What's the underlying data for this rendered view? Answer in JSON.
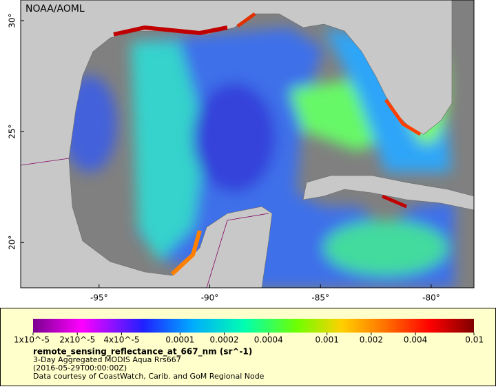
{
  "map": {
    "credit": "NOAA/AOML",
    "lon_range": [
      -98.54,
      -78.07
    ],
    "lat_range": [
      17.96,
      30.93
    ],
    "lon_ticks": [
      {
        "value": -95,
        "label": "-95°"
      },
      {
        "value": -90,
        "label": "-90°"
      },
      {
        "value": -85,
        "label": "-85°"
      },
      {
        "value": -80,
        "label": "-80°"
      }
    ],
    "lat_ticks": [
      {
        "value": 20,
        "label": "20°"
      },
      {
        "value": 25,
        "label": "25°"
      },
      {
        "value": 30,
        "label": "30°"
      }
    ]
  },
  "legend": {
    "colorbar_range": [
      1e-05,
      0.01
    ],
    "log_scale": true,
    "ticks": [
      {
        "value": 1e-05,
        "label": "1x10^-5"
      },
      {
        "value": 2e-05,
        "label": "2x10^-5"
      },
      {
        "value": 4e-05,
        "label": "4x10^-5"
      },
      0.0001,
      0.0002,
      0.0004,
      0.001,
      0.002,
      0.004,
      0.01
    ],
    "title": "remote_sensing_reflectance_at_667_nm (sr^-1)",
    "lines": [
      "3-Day Aggregated MODIS Aqua Rrs667",
      "(2016-05-29T00:00:00Z)",
      "Data courtesy of CoastWatch, Carib. and GoM Regional Node"
    ]
  }
}
